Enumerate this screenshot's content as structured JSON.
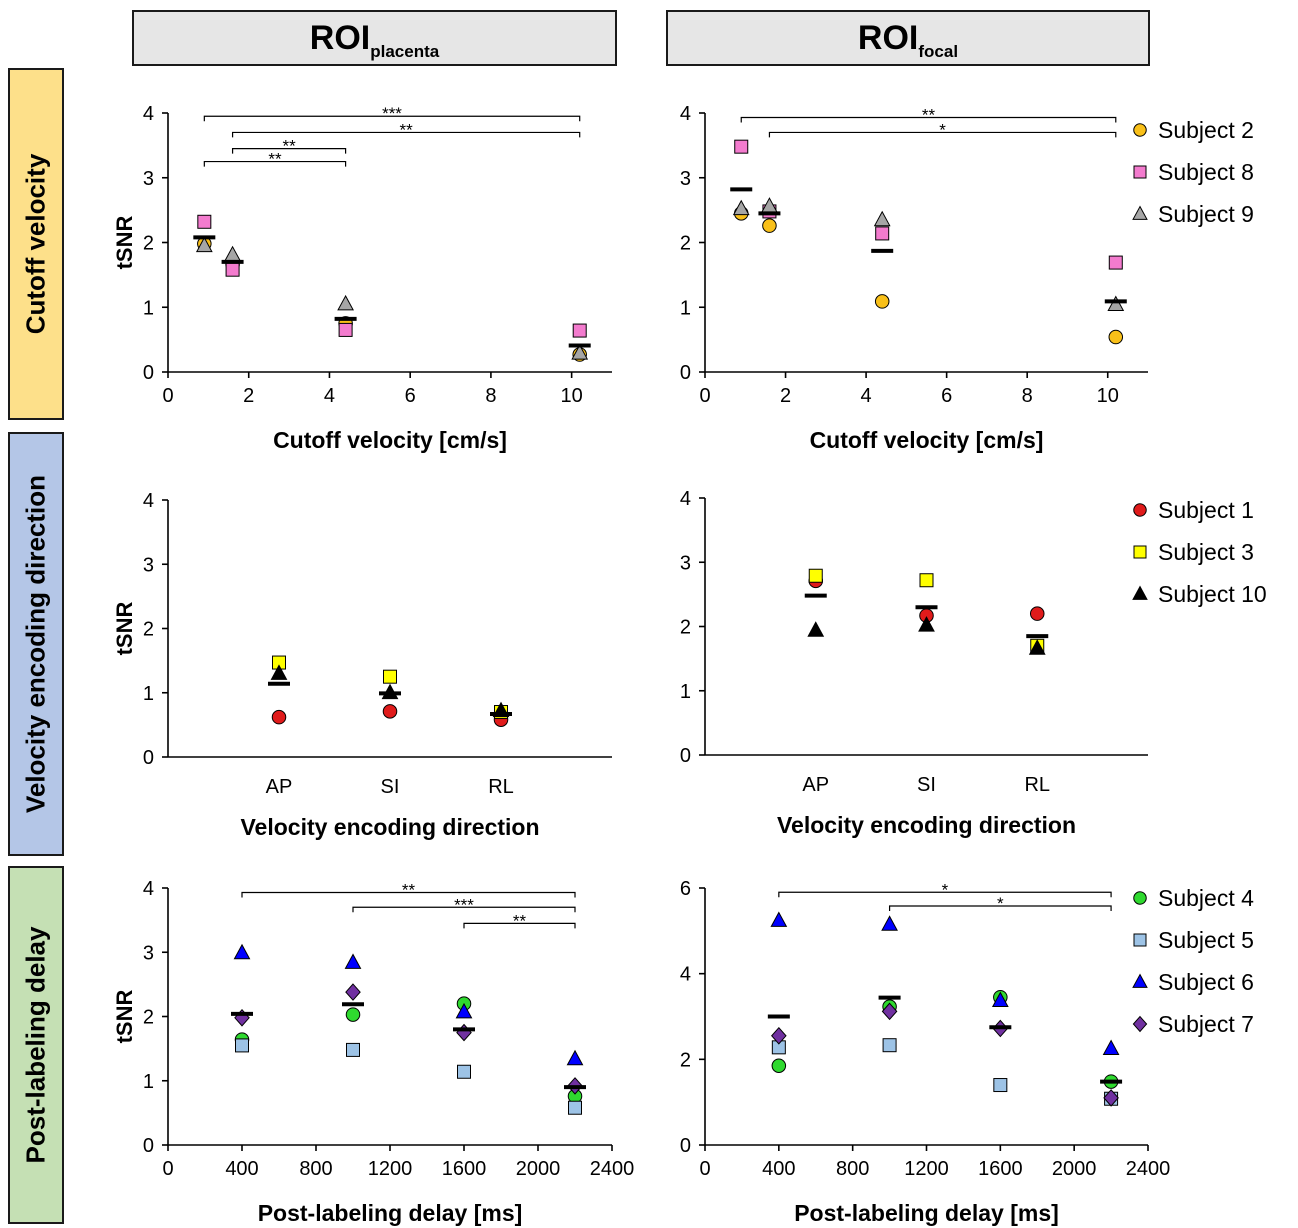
{
  "columns": [
    {
      "label": "ROI",
      "sub": "placenta"
    },
    {
      "label": "ROI",
      "sub": "focal"
    }
  ],
  "rows": [
    {
      "label": "Cutoff velocity",
      "color": "#fde08a"
    },
    {
      "label": "Velocity encoding direction",
      "color": "#b4c6e7"
    },
    {
      "label": "Post-labeling delay",
      "color": "#c5e0b4"
    }
  ],
  "legends": [
    [
      {
        "name": "Subject 2",
        "marker": "circle",
        "color": "#f9c019"
      },
      {
        "name": "Subject 8",
        "marker": "square",
        "color": "#f37bce"
      },
      {
        "name": "Subject 9",
        "marker": "triangle",
        "color": "#a6a6a6"
      }
    ],
    [
      {
        "name": "Subject 1",
        "marker": "circle",
        "color": "#e01b1b"
      },
      {
        "name": "Subject 3",
        "marker": "square",
        "color": "#ffff00"
      },
      {
        "name": "Subject 10",
        "marker": "triangle",
        "color": "#000000"
      }
    ],
    [
      {
        "name": "Subject 4",
        "marker": "circle",
        "color": "#2fd92f"
      },
      {
        "name": "Subject 5",
        "marker": "square",
        "color": "#9dc3e6"
      },
      {
        "name": "Subject 6",
        "marker": "triangle",
        "color": "#0000ff"
      },
      {
        "name": "Subject 7",
        "marker": "diamond",
        "color": "#7030a0"
      }
    ]
  ],
  "chart_data": [
    {
      "id": "cutoff-placenta",
      "type": "scatter",
      "xlabel": "Cutoff velocity [cm/s]",
      "ylabel": "tSNR",
      "xlim": [
        0,
        11
      ],
      "ylim": [
        0,
        4
      ],
      "xticks": [
        0,
        2,
        4,
        6,
        8,
        10
      ],
      "yticks": [
        0,
        1,
        2,
        3,
        4
      ],
      "x": [
        0.9,
        1.6,
        4.4,
        10.2
      ],
      "series": [
        {
          "name": "Subject 2",
          "values": [
            1.98,
            1.66,
            0.75,
            0.27
          ]
        },
        {
          "name": "Subject 8",
          "values": [
            2.32,
            1.58,
            0.65,
            0.64
          ]
        },
        {
          "name": "Subject 9",
          "values": [
            1.95,
            1.81,
            1.05,
            0.29
          ]
        }
      ],
      "means": [
        2.08,
        1.7,
        0.82,
        0.41
      ],
      "significance": [
        {
          "x1": 0.9,
          "x2": 10.2,
          "level": 3.95,
          "label": "***"
        },
        {
          "x1": 1.6,
          "x2": 10.2,
          "level": 3.7,
          "label": "**"
        },
        {
          "x1": 1.6,
          "x2": 4.4,
          "level": 3.45,
          "label": "**"
        },
        {
          "x1": 0.9,
          "x2": 4.4,
          "level": 3.25,
          "label": "**"
        }
      ]
    },
    {
      "id": "cutoff-focal",
      "type": "scatter",
      "xlabel": "Cutoff velocity [cm/s]",
      "ylabel": "",
      "xlim": [
        0,
        11
      ],
      "ylim": [
        0,
        4
      ],
      "xticks": [
        0,
        2,
        4,
        6,
        8,
        10
      ],
      "yticks": [
        0,
        1,
        2,
        3,
        4
      ],
      "x": [
        0.9,
        1.6,
        4.4,
        10.2
      ],
      "series": [
        {
          "name": "Subject 2",
          "values": [
            2.45,
            2.26,
            1.09,
            0.54
          ]
        },
        {
          "name": "Subject 8",
          "values": [
            3.48,
            2.48,
            2.14,
            1.69
          ]
        },
        {
          "name": "Subject 9",
          "values": [
            2.52,
            2.56,
            2.35,
            1.04
          ]
        }
      ],
      "means": [
        2.82,
        2.45,
        1.87,
        1.09
      ],
      "significance": [
        {
          "x1": 0.9,
          "x2": 10.2,
          "level": 3.93,
          "label": "**"
        },
        {
          "x1": 1.6,
          "x2": 10.2,
          "level": 3.7,
          "label": "*"
        }
      ]
    },
    {
      "id": "direction-placenta",
      "type": "scatter",
      "xlabel": "Velocity encoding direction",
      "ylabel": "tSNR",
      "xlim": [
        0,
        4
      ],
      "ylim": [
        0,
        4
      ],
      "categories": [
        "AP",
        "SI",
        "RL"
      ],
      "yticks": [
        0,
        1,
        2,
        3,
        4
      ],
      "x": [
        1,
        2,
        3
      ],
      "series": [
        {
          "name": "Subject 1",
          "values": [
            0.62,
            0.71,
            0.58
          ]
        },
        {
          "name": "Subject 3",
          "values": [
            1.47,
            1.25,
            0.7
          ]
        },
        {
          "name": "Subject 10",
          "values": [
            1.3,
            1.0,
            0.72
          ]
        }
      ],
      "means": [
        1.14,
        0.99,
        0.67
      ],
      "significance": []
    },
    {
      "id": "direction-focal",
      "type": "scatter",
      "xlabel": "Velocity encoding direction",
      "ylabel": "",
      "xlim": [
        0,
        4
      ],
      "ylim": [
        0,
        4
      ],
      "categories": [
        "AP",
        "SI",
        "RL"
      ],
      "yticks": [
        0,
        1,
        2,
        3,
        4
      ],
      "x": [
        1,
        2,
        3
      ],
      "series": [
        {
          "name": "Subject 1",
          "values": [
            2.71,
            2.17,
            2.2
          ]
        },
        {
          "name": "Subject 3",
          "values": [
            2.79,
            2.72,
            1.7
          ]
        },
        {
          "name": "Subject 10",
          "values": [
            1.94,
            2.02,
            1.66
          ]
        }
      ],
      "means": [
        2.48,
        2.3,
        1.85
      ],
      "significance": []
    },
    {
      "id": "pld-placenta",
      "type": "scatter",
      "xlabel": "Post-labeling delay [ms]",
      "ylabel": "tSNR",
      "xlim": [
        0,
        2400
      ],
      "ylim": [
        0,
        4
      ],
      "xticks": [
        0,
        400,
        800,
        1200,
        1600,
        2000,
        2400
      ],
      "yticks": [
        0,
        1,
        2,
        3,
        4
      ],
      "x": [
        400,
        1000,
        1600,
        2200
      ],
      "series": [
        {
          "name": "Subject 4",
          "values": [
            1.64,
            2.03,
            2.2,
            0.76
          ]
        },
        {
          "name": "Subject 5",
          "values": [
            1.55,
            1.48,
            1.14,
            0.58
          ]
        },
        {
          "name": "Subject 6",
          "values": [
            2.99,
            2.84,
            2.07,
            1.34
          ]
        },
        {
          "name": "Subject 7",
          "values": [
            1.98,
            2.38,
            1.75,
            0.92
          ]
        }
      ],
      "means": [
        2.04,
        2.19,
        1.8,
        0.9
      ],
      "significance": [
        {
          "x1": 400,
          "x2": 2200,
          "level": 3.93,
          "label": "**"
        },
        {
          "x1": 1000,
          "x2": 2200,
          "level": 3.7,
          "label": "***"
        },
        {
          "x1": 1600,
          "x2": 2200,
          "level": 3.45,
          "label": "**"
        }
      ]
    },
    {
      "id": "pld-focal",
      "type": "scatter",
      "xlabel": "Post-labeling delay [ms]",
      "ylabel": "",
      "xlim": [
        0,
        2400
      ],
      "ylim": [
        0,
        6
      ],
      "xticks": [
        0,
        400,
        800,
        1200,
        1600,
        2000,
        2400
      ],
      "yticks": [
        0,
        2,
        4,
        6
      ],
      "x": [
        400,
        1000,
        1600,
        2200
      ],
      "series": [
        {
          "name": "Subject 4",
          "values": [
            1.85,
            3.23,
            3.45,
            1.48
          ]
        },
        {
          "name": "Subject 5",
          "values": [
            2.28,
            2.33,
            1.4,
            1.08
          ]
        },
        {
          "name": "Subject 6",
          "values": [
            5.24,
            5.15,
            3.37,
            2.25
          ]
        },
        {
          "name": "Subject 7",
          "values": [
            2.55,
            3.12,
            2.72,
            1.1
          ]
        }
      ],
      "means": [
        3.0,
        3.44,
        2.75,
        1.48
      ],
      "significance": [
        {
          "x1": 400,
          "x2": 2200,
          "level": 5.9,
          "label": "*"
        },
        {
          "x1": 1000,
          "x2": 2200,
          "level": 5.58,
          "label": "*"
        }
      ]
    }
  ]
}
